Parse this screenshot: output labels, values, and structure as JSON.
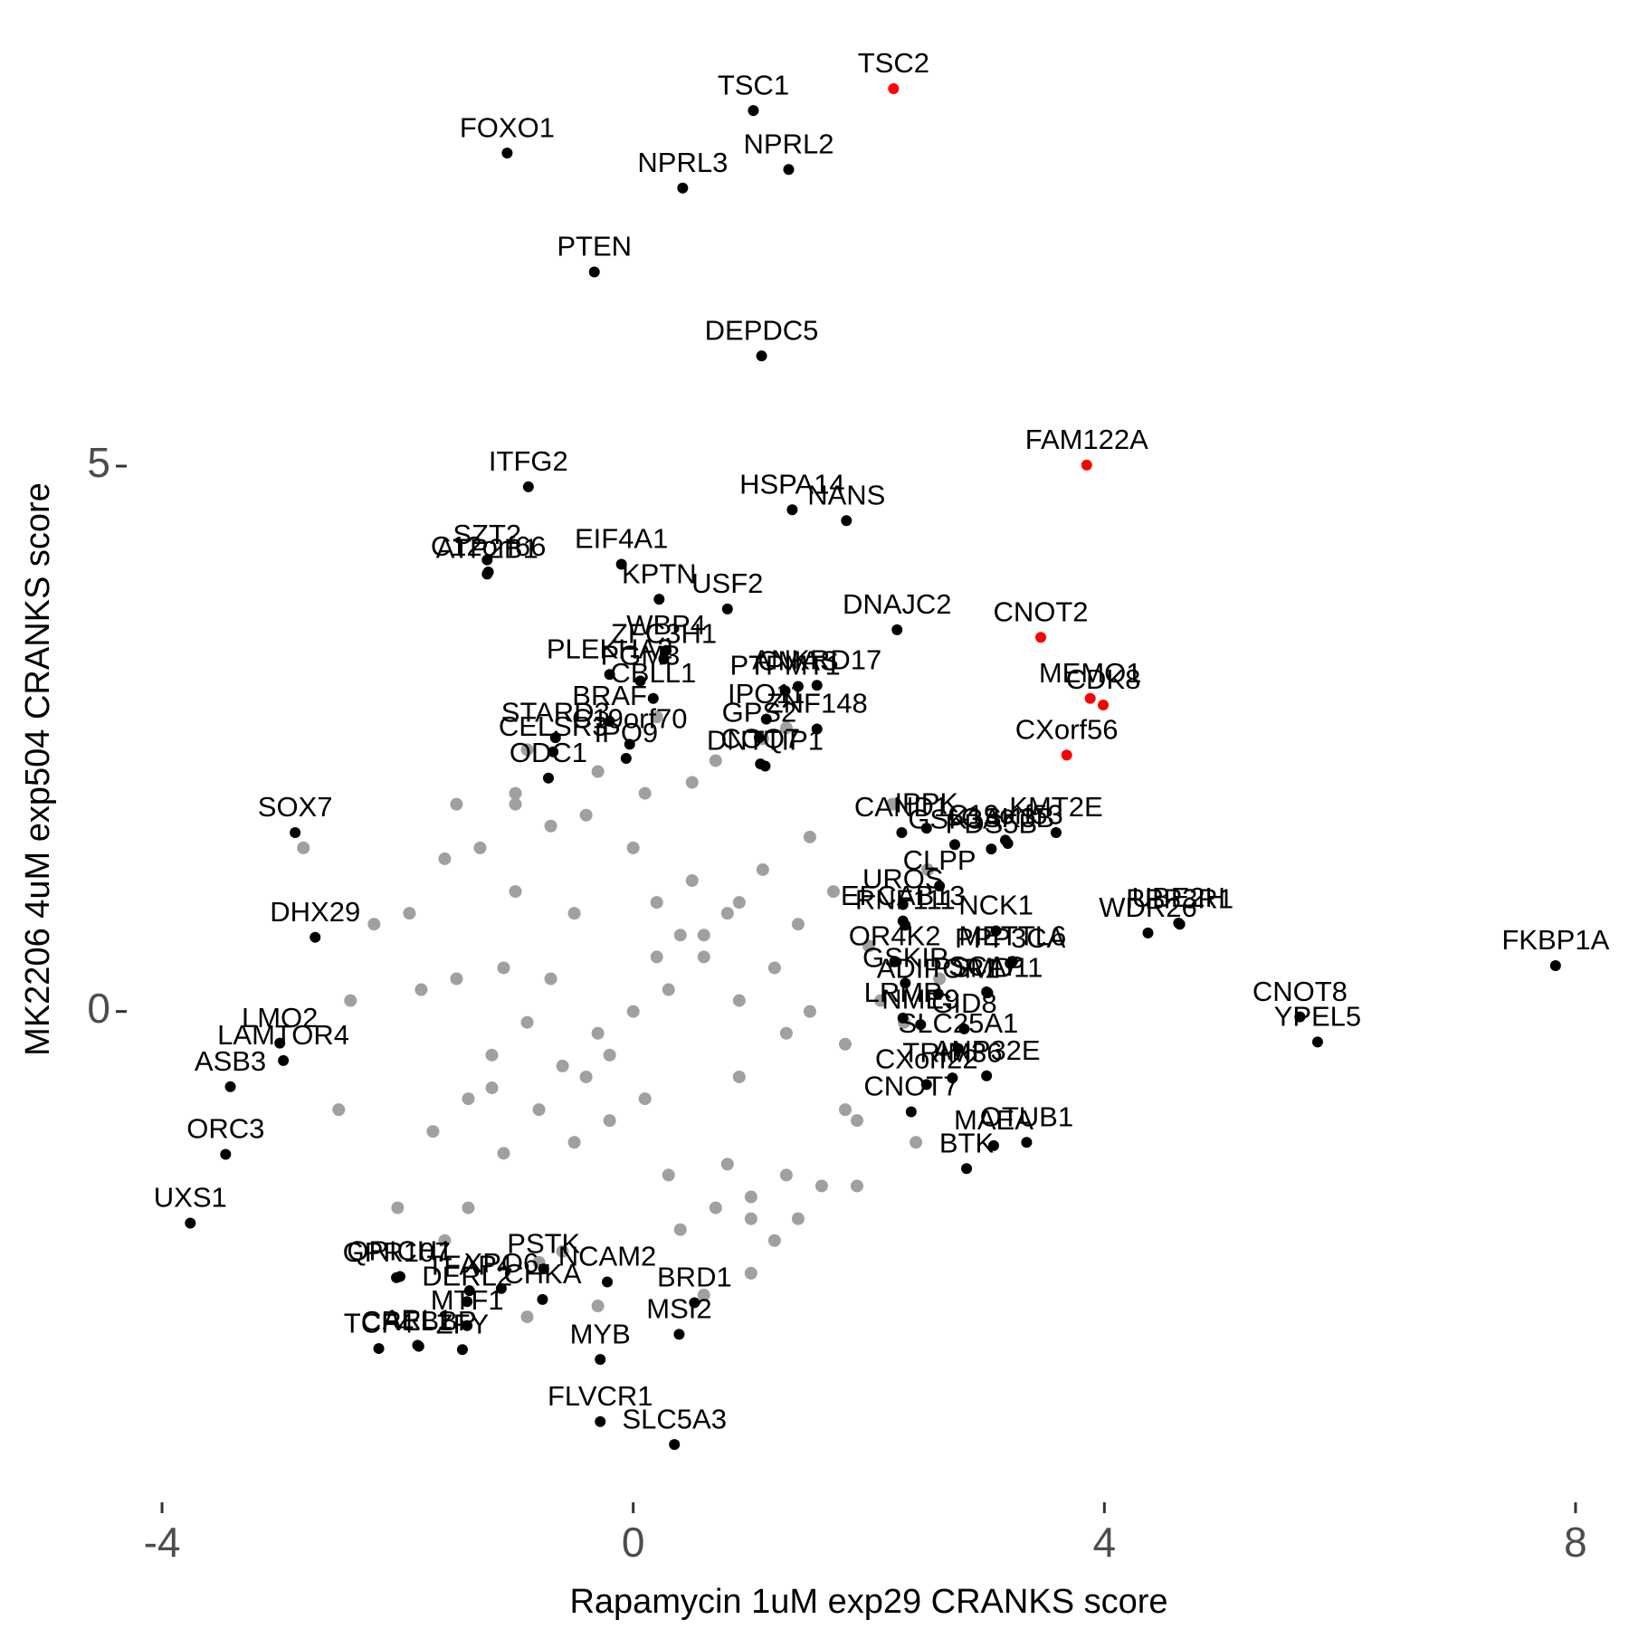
{
  "chart_data": {
    "type": "scatter",
    "xlabel": "Rapamycin 1uM exp29 CRANKS score",
    "ylabel": "MK2206 4uM exp504 CRANKS score",
    "xlim": [
      -4.3,
      8.3
    ],
    "ylim": [
      -4.5,
      8.9
    ],
    "xticks": [
      -4,
      0,
      4,
      8
    ],
    "yticks": [
      0,
      5
    ],
    "series": [
      {
        "color": "#a0a0a0",
        "x": [
          0.0,
          0.3,
          -0.3,
          0.6,
          -0.6,
          0.9,
          -0.9,
          1.2,
          -1.2,
          1.5,
          -1.5,
          1.8,
          -1.8,
          2.1,
          0.2,
          -0.2,
          0.5,
          -0.5,
          0.8,
          -0.8,
          1.1,
          -1.1,
          1.4,
          -1.4,
          1.7,
          -1.7,
          2.0,
          0.1,
          0.4,
          -0.4,
          0.7,
          -0.7,
          1.0,
          -1.0,
          1.3,
          -1.3,
          1.6,
          -1.6,
          1.9,
          -1.9,
          0.0,
          0.3,
          -0.3,
          0.6,
          -0.6,
          0.9,
          -0.9,
          1.2,
          -1.2,
          1.5,
          -1.5,
          1.8,
          0.2,
          -0.2,
          0.5,
          -0.5,
          0.8,
          -0.8,
          1.1,
          -1.1,
          1.4,
          -1.4,
          0.1,
          0.4,
          -0.4,
          0.7,
          -0.7,
          1.0,
          -1.0,
          1.3,
          -2.2,
          -2.5,
          2.3,
          2.6,
          -2.0,
          2.2,
          1.3,
          -0.3,
          0.6,
          -1.0,
          0.2,
          1.9,
          -1.6,
          2.4,
          -2.4,
          0.9,
          -2.8,
          2.5,
          1.0,
          -0.9
        ],
        "y": [
          0.0,
          0.2,
          -0.2,
          0.5,
          -0.5,
          0.1,
          -0.1,
          0.4,
          -0.4,
          0.0,
          0.3,
          -0.3,
          0.2,
          0.1,
          1.0,
          -1.0,
          1.2,
          -1.2,
          0.9,
          -0.9,
          1.3,
          -1.3,
          0.8,
          -0.8,
          1.1,
          -1.1,
          0.6,
          2.0,
          -2.0,
          1.8,
          -1.8,
          1.7,
          -1.7,
          1.9,
          -1.5,
          1.5,
          -1.6,
          1.4,
          -1.0,
          0.9,
          1.5,
          -1.5,
          2.2,
          0.7,
          -2.2,
          -0.6,
          2.4,
          -2.1,
          -0.7,
          1.6,
          1.9,
          -0.9,
          0.5,
          -0.4,
          2.1,
          0.9,
          -1.4,
          -2.3,
          2.5,
          0.4,
          -1.9,
          -1.8,
          -0.8,
          0.7,
          -0.6,
          2.3,
          0.3,
          -2.4,
          1.1,
          -0.2,
          0.8,
          -0.9,
          -0.1,
          0.3,
          -1.8,
          1.9,
          2.6,
          -2.7,
          -2.6,
          2.0,
          2.7,
          -1.6,
          -2.1,
          -1.2,
          0.1,
          1.0,
          1.5,
          1.3,
          -1.9,
          -2.8
        ]
      },
      {
        "color": "#000000",
        "labels": [
          "TSC1",
          "FOXO1",
          "NPRL2",
          "NPRL3",
          "PTEN",
          "DEPDC5",
          "ITFG2",
          "HSPA14",
          "NANS",
          "SZT2",
          "ATP2B1",
          "C12orf66",
          "EIF4A1",
          "KPTN",
          "USF2",
          "DNAJC2",
          "WBP4",
          "ZFC3H1",
          "PLEKHA2",
          "PGM3",
          "CMAS",
          "PTPMT1",
          "ANKRD17",
          "STARD3",
          "CELSR3",
          "CBLL1",
          "ZNF148",
          "BRAF",
          "IPO11",
          "GPS2",
          "IPO9",
          "C19orf70",
          "ODC1",
          "COQ7",
          "DNTTIP1",
          "IPPK",
          "CAND1",
          "C19orf53",
          "PDS5B",
          "KMT2E",
          "GSK3B",
          "GSK3A",
          "CLPP",
          "NCK1",
          "UBE2H",
          "WDR26",
          "PPP3R1",
          "FKBP1A",
          "CNOT8",
          "YPEL5",
          "UROS",
          "EFCAB13",
          "RNF111",
          "OR4K2",
          "METTL6",
          "PPP3CA",
          "GSKIP",
          "ADIPOR1",
          "SCAP",
          "PSMD11",
          "GID8",
          "LRMP",
          "NME9",
          "SLC25A1",
          "ANP32E",
          "CXorf22",
          "CNOT7",
          "TRIM36",
          "OTUB1",
          "MAEA",
          "BTK",
          "SOX7",
          "DHX29",
          "LMO2",
          "LAMTOR4",
          "ASB3",
          "ORC3",
          "UXS1",
          "QRICH1",
          "GPR107",
          "TFAP4",
          "XPO6",
          "DERL2",
          "MTF1",
          "ZFY",
          "TCF4",
          "ARL1",
          "CREBBP",
          "PSTK",
          "NCAM2",
          "CHKA",
          "BRD1",
          "MSI2",
          "MYB",
          "FLVCR1",
          "SLC5A3"
        ],
        "x": [
          1.02,
          -1.07,
          1.32,
          0.42,
          -0.33,
          1.09,
          -0.89,
          1.35,
          1.81,
          -1.24,
          -1.24,
          -1.23,
          -0.1,
          0.22,
          0.8,
          2.24,
          0.28,
          0.26,
          -0.2,
          0.06,
          1.4,
          1.29,
          1.56,
          -0.66,
          -0.68,
          0.17,
          1.56,
          -0.2,
          1.13,
          1.07,
          -0.06,
          -0.03,
          -0.72,
          1.08,
          1.12,
          2.49,
          2.28,
          3.16,
          3.04,
          3.59,
          3.18,
          2.73,
          2.6,
          3.08,
          4.63,
          4.37,
          4.64,
          7.83,
          5.66,
          5.81,
          2.29,
          2.29,
          2.31,
          2.22,
          3.22,
          3.2,
          2.31,
          2.59,
          3.0,
          3.01,
          2.81,
          2.29,
          2.44,
          2.76,
          3.0,
          2.49,
          2.36,
          2.71,
          3.34,
          3.06,
          2.83,
          -2.87,
          -2.7,
          -3.0,
          -2.97,
          -3.42,
          -3.46,
          -3.76,
          -1.98,
          -2.01,
          -1.39,
          -1.12,
          -1.41,
          -1.41,
          -1.45,
          -2.16,
          -1.83,
          -1.82,
          -0.76,
          -0.22,
          -0.77,
          0.52,
          0.39,
          -0.28,
          -0.28,
          0.35
        ],
        "y": [
          8.26,
          7.87,
          7.72,
          7.55,
          6.78,
          6.01,
          4.81,
          4.6,
          4.5,
          4.14,
          4.01,
          4.03,
          4.1,
          3.78,
          3.69,
          3.5,
          3.31,
          3.23,
          3.09,
          3.03,
          2.98,
          2.94,
          2.99,
          2.51,
          2.38,
          2.87,
          2.59,
          2.66,
          2.68,
          2.51,
          2.32,
          2.45,
          2.14,
          2.27,
          2.25,
          1.68,
          1.64,
          1.57,
          1.49,
          1.64,
          1.54,
          1.53,
          1.15,
          0.74,
          0.81,
          0.72,
          0.8,
          0.42,
          -0.05,
          -0.28,
          0.98,
          0.83,
          0.79,
          0.46,
          0.46,
          0.44,
          0.26,
          0.16,
          0.18,
          0.17,
          -0.16,
          -0.06,
          -0.12,
          -0.34,
          -0.59,
          -0.67,
          -0.92,
          -0.61,
          -1.2,
          -1.23,
          -1.44,
          1.64,
          0.68,
          -0.29,
          -0.45,
          -0.69,
          -1.31,
          -1.94,
          -2.43,
          -2.44,
          -2.56,
          -2.54,
          -2.66,
          -2.88,
          -3.1,
          -3.09,
          -3.06,
          -3.07,
          -2.36,
          -2.48,
          -2.64,
          -2.67,
          -2.96,
          -3.19,
          -3.76,
          -3.97
        ]
      },
      {
        "color": "#ff0000",
        "labels": [
          "TSC2",
          "FAM122A",
          "CNOT2",
          "MEMO1",
          "CDK8",
          "CXorf56"
        ],
        "x": [
          2.21,
          3.85,
          3.46,
          3.88,
          3.99,
          3.68
        ],
        "y": [
          8.46,
          5.01,
          3.43,
          2.87,
          2.81,
          2.35
        ]
      }
    ]
  }
}
